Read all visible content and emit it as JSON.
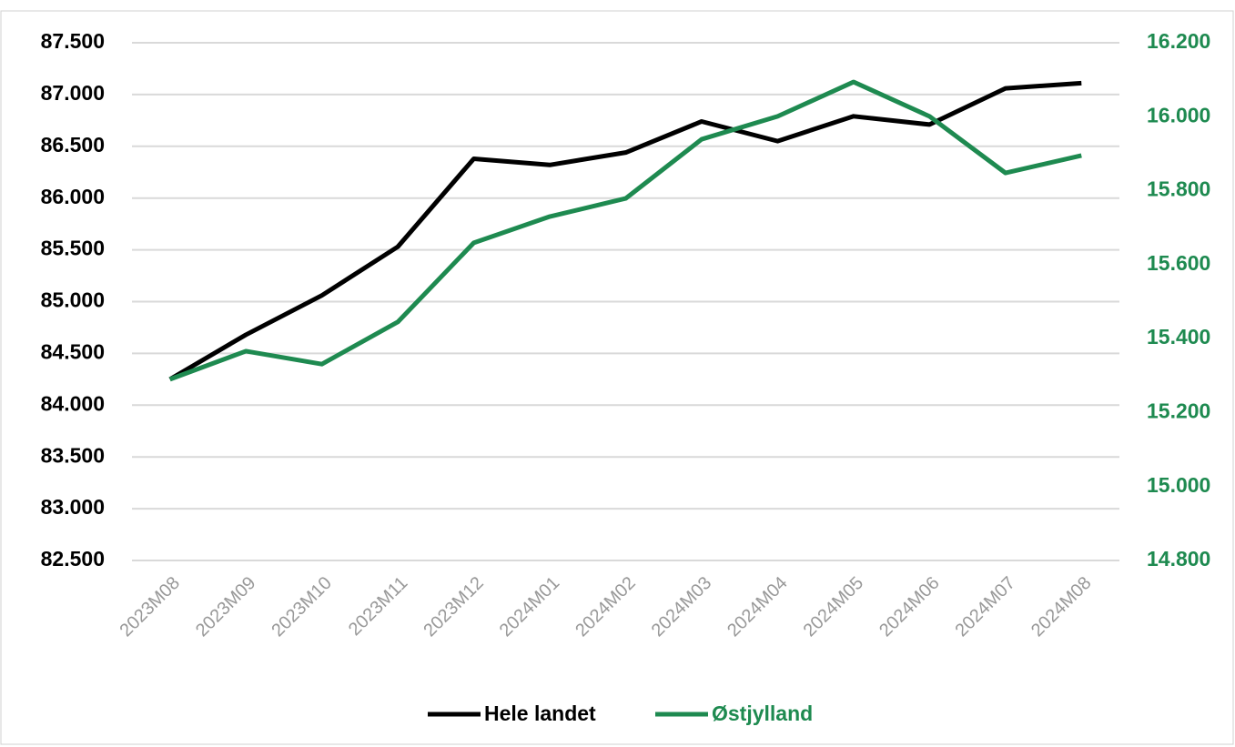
{
  "chart_data": {
    "type": "line",
    "categories": [
      "2023M08",
      "2023M09",
      "2023M10",
      "2023M11",
      "2023M12",
      "2024M01",
      "2024M02",
      "2024M03",
      "2024M04",
      "2024M05",
      "2024M06",
      "2024M07",
      "2024M08"
    ],
    "series": [
      {
        "name": "Hele landet",
        "color": "#000000",
        "values": [
          84250,
          84680,
          85060,
          85530,
          86380,
          86320,
          86440,
          86740,
          86550,
          86790,
          86710,
          87060,
          87110
        ]
      },
      {
        "name": "Østjylland",
        "color": "#1e8a50",
        "axis": "y2",
        "values": [
          15290,
          15366,
          15331,
          15445,
          15659,
          15730,
          15779,
          15939,
          16001,
          16094,
          16001,
          15848,
          15895
        ]
      }
    ],
    "ylim": [
      82500,
      87500
    ],
    "yticks": [
      {
        "value": 82500,
        "label": "82.500"
      },
      {
        "value": 83000,
        "label": "83.000"
      },
      {
        "value": 83500,
        "label": "83.500"
      },
      {
        "value": 84000,
        "label": "84.000"
      },
      {
        "value": 84500,
        "label": "84.500"
      },
      {
        "value": 85000,
        "label": "85.000"
      },
      {
        "value": 85500,
        "label": "85.500"
      },
      {
        "value": 86000,
        "label": "86.000"
      },
      {
        "value": 86500,
        "label": "86.500"
      },
      {
        "value": 87000,
        "label": "87.000"
      },
      {
        "value": 87500,
        "label": "87.500"
      }
    ],
    "y2lim": [
      14800,
      16200
    ],
    "y2ticks": [
      {
        "value": 14800,
        "label": "14.800"
      },
      {
        "value": 15000,
        "label": "15.000"
      },
      {
        "value": 15200,
        "label": "15.200"
      },
      {
        "value": 15400,
        "label": "15.400"
      },
      {
        "value": 15600,
        "label": "15.600"
      },
      {
        "value": 15800,
        "label": "15.800"
      },
      {
        "value": 16000,
        "label": "16.000"
      },
      {
        "value": 16200,
        "label": "16.200"
      }
    ],
    "grid": true,
    "legend": "bottom"
  }
}
